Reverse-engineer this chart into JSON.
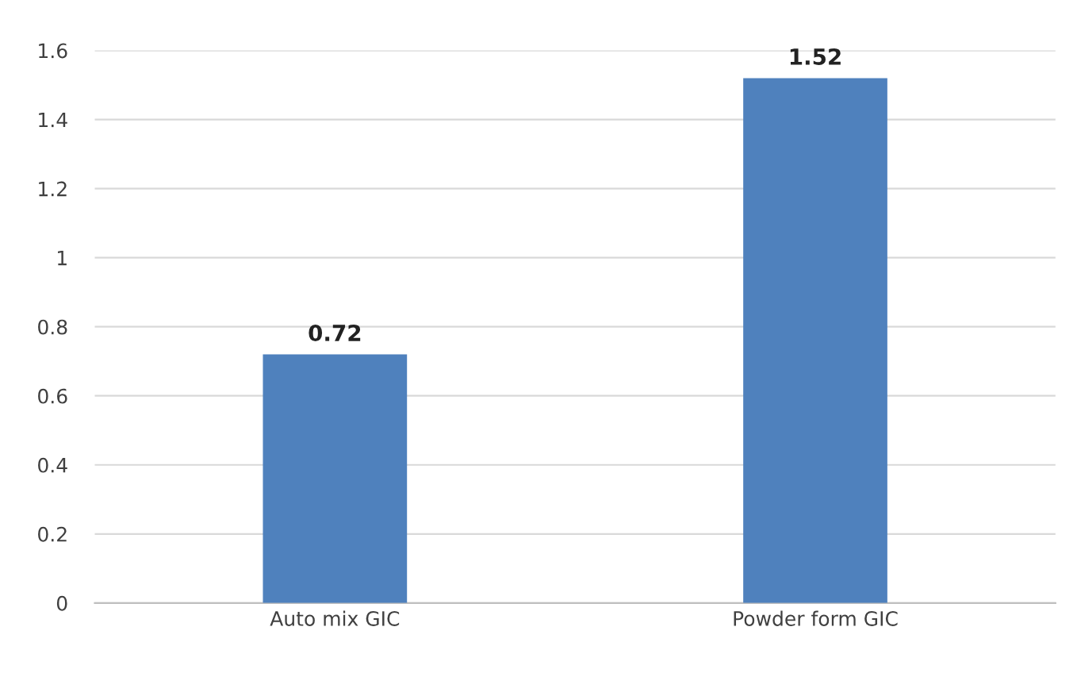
{
  "chart_data": {
    "type": "bar",
    "categories": [
      "Auto mix GIC",
      "Powder form GIC"
    ],
    "values": [
      0.72,
      1.52
    ],
    "color": "#4f81bd",
    "ylim": [
      0,
      1.6
    ],
    "yticks": [
      0,
      0.2,
      0.4,
      0.6,
      0.8,
      1,
      1.2,
      1.4,
      1.6
    ],
    "grid": "y",
    "data_labels": true,
    "legend": false
  }
}
